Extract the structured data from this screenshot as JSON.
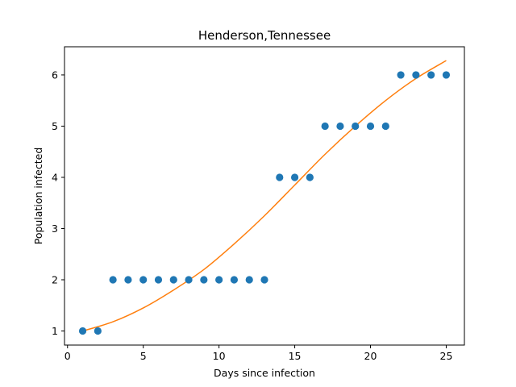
{
  "chart_data": {
    "type": "scatter",
    "title": "Henderson,Tennessee",
    "xlabel": "Days since infection",
    "ylabel": "Population infected",
    "xlim": [
      -0.2,
      26.2
    ],
    "ylim": [
      0.725,
      6.55
    ],
    "xticks": [
      0,
      5,
      10,
      15,
      20,
      25
    ],
    "yticks": [
      1,
      2,
      3,
      4,
      5,
      6
    ],
    "grid": false,
    "series": [
      {
        "kind": "scatter",
        "color": "#1f77b4",
        "points": [
          [
            1,
            1
          ],
          [
            2,
            1
          ],
          [
            3,
            2
          ],
          [
            4,
            2
          ],
          [
            5,
            2
          ],
          [
            6,
            2
          ],
          [
            7,
            2
          ],
          [
            8,
            2
          ],
          [
            9,
            2
          ],
          [
            10,
            2
          ],
          [
            11,
            2
          ],
          [
            12,
            2
          ],
          [
            13,
            2
          ],
          [
            14,
            4
          ],
          [
            15,
            4
          ],
          [
            16,
            4
          ],
          [
            17,
            5
          ],
          [
            18,
            5
          ],
          [
            19,
            5
          ],
          [
            20,
            5
          ],
          [
            21,
            5
          ],
          [
            22,
            6
          ],
          [
            23,
            6
          ],
          [
            24,
            6
          ],
          [
            25,
            6
          ]
        ]
      },
      {
        "kind": "line",
        "color": "#ff7f0e",
        "points": [
          [
            1,
            1.0
          ],
          [
            3,
            1.18
          ],
          [
            5,
            1.45
          ],
          [
            7,
            1.8
          ],
          [
            9,
            2.2
          ],
          [
            11,
            2.7
          ],
          [
            13,
            3.25
          ],
          [
            15,
            3.85
          ],
          [
            17,
            4.45
          ],
          [
            19,
            5.0
          ],
          [
            21,
            5.5
          ],
          [
            23,
            5.93
          ],
          [
            25,
            6.28
          ]
        ]
      }
    ]
  }
}
